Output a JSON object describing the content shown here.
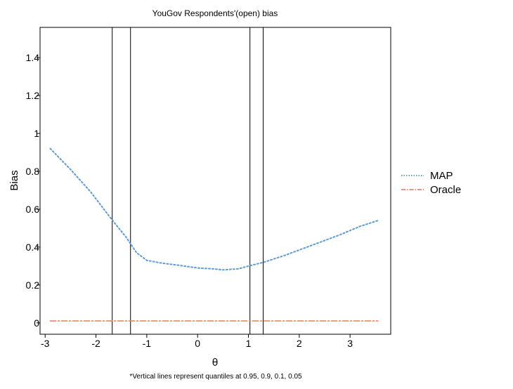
{
  "chart_data": {
    "type": "line",
    "title": "YouGov Respondents'(open) bias",
    "xlabel": "θ",
    "ylabel": "Bias",
    "caption": "*Vertical lines represent quantiles at 0.95, 0.9, 0.1, 0.05",
    "xlim": [
      -3.1,
      3.8
    ],
    "ylim": [
      -0.06,
      1.56
    ],
    "x_ticks": [
      -3,
      -2,
      -1,
      0,
      1,
      2,
      3
    ],
    "y_ticks": [
      0,
      0.2,
      0.4,
      0.6,
      0.8,
      1,
      1.2,
      1.4
    ],
    "y_tick_labels": [
      "0",
      "0.2",
      "0.4",
      "0.6",
      "0.8",
      "1",
      "1.2",
      "1.4"
    ],
    "grid": false,
    "legend_position": "right",
    "vlines": [
      -1.68,
      -1.32,
      1.03,
      1.29
    ],
    "series": [
      {
        "name": "MAP",
        "color": "#5b9bd5",
        "style": "dotted",
        "x": [
          -2.9,
          -2.5,
          -2.1,
          -1.7,
          -1.4,
          -1.2,
          -1.0,
          -0.7,
          -0.4,
          0.0,
          0.3,
          0.5,
          0.8,
          1.0,
          1.3,
          1.7,
          2.0,
          2.4,
          2.8,
          3.2,
          3.55
        ],
        "y": [
          0.92,
          0.81,
          0.69,
          0.55,
          0.45,
          0.37,
          0.33,
          0.315,
          0.305,
          0.29,
          0.285,
          0.28,
          0.285,
          0.3,
          0.32,
          0.355,
          0.385,
          0.425,
          0.465,
          0.51,
          0.54
        ]
      },
      {
        "name": "Oracle",
        "color": "#e8836b",
        "style": "dashdot",
        "x": [
          -2.9,
          3.55
        ],
        "y": [
          0.01,
          0.01
        ]
      }
    ]
  }
}
